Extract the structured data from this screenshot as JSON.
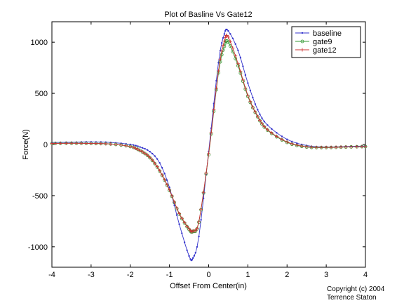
{
  "copyright": {
    "line1": "Copyright (c) 2004",
    "line2": "Terrence Staton"
  },
  "chart_data": {
    "type": "line",
    "title": "Plot of Basline Vs Gate12",
    "xlabel": "Offset From Center(in)",
    "ylabel": "Force(N)",
    "xlim": [
      -4,
      4
    ],
    "ylim": [
      -1200,
      1200
    ],
    "xticks": [
      -4,
      -3,
      -2,
      -1,
      0,
      1,
      2,
      3,
      4
    ],
    "yticks": [
      -1000,
      -500,
      0,
      500,
      1000
    ],
    "xtick_labels": [
      "-4",
      "-3",
      "-2",
      "-1",
      "0",
      "1",
      "2",
      "3",
      "4"
    ],
    "ytick_labels": [
      "-1000",
      "-500",
      "0",
      "500",
      "1000"
    ],
    "grid": false,
    "legend_position": "top-right",
    "x": [
      -4,
      -3.5,
      -3,
      -2.5,
      -2,
      -1.75,
      -1.5,
      -1.25,
      -1,
      -0.75,
      -0.5,
      -0.4,
      -0.25,
      0,
      0.25,
      0.4,
      0.5,
      0.75,
      1,
      1.25,
      1.5,
      2,
      2.5,
      3,
      3.5,
      4
    ],
    "series": [
      {
        "name": "baseline",
        "color": "#3333cc",
        "marker": "point",
        "values": [
          20,
          22,
          25,
          20,
          0,
          -25,
          -70,
          -180,
          -420,
          -780,
          -1090,
          -1110,
          -900,
          -70,
          800,
          1080,
          1110,
          920,
          600,
          340,
          190,
          50,
          -10,
          -25,
          -20,
          -15
        ]
      },
      {
        "name": "gate9",
        "color": "#339933",
        "marker": "circle",
        "values": [
          10,
          12,
          10,
          5,
          -20,
          -60,
          -130,
          -260,
          -450,
          -680,
          -830,
          -850,
          -760,
          -100,
          700,
          960,
          1000,
          770,
          470,
          270,
          140,
          20,
          -25,
          -30,
          -25,
          -20
        ]
      },
      {
        "name": "gate12",
        "color": "#cc3333",
        "marker": "plus",
        "values": [
          10,
          12,
          10,
          5,
          -20,
          -60,
          -125,
          -255,
          -445,
          -675,
          -825,
          -845,
          -755,
          -90,
          720,
          1010,
          1050,
          790,
          480,
          275,
          145,
          25,
          -22,
          -28,
          -24,
          -20
        ]
      }
    ]
  }
}
